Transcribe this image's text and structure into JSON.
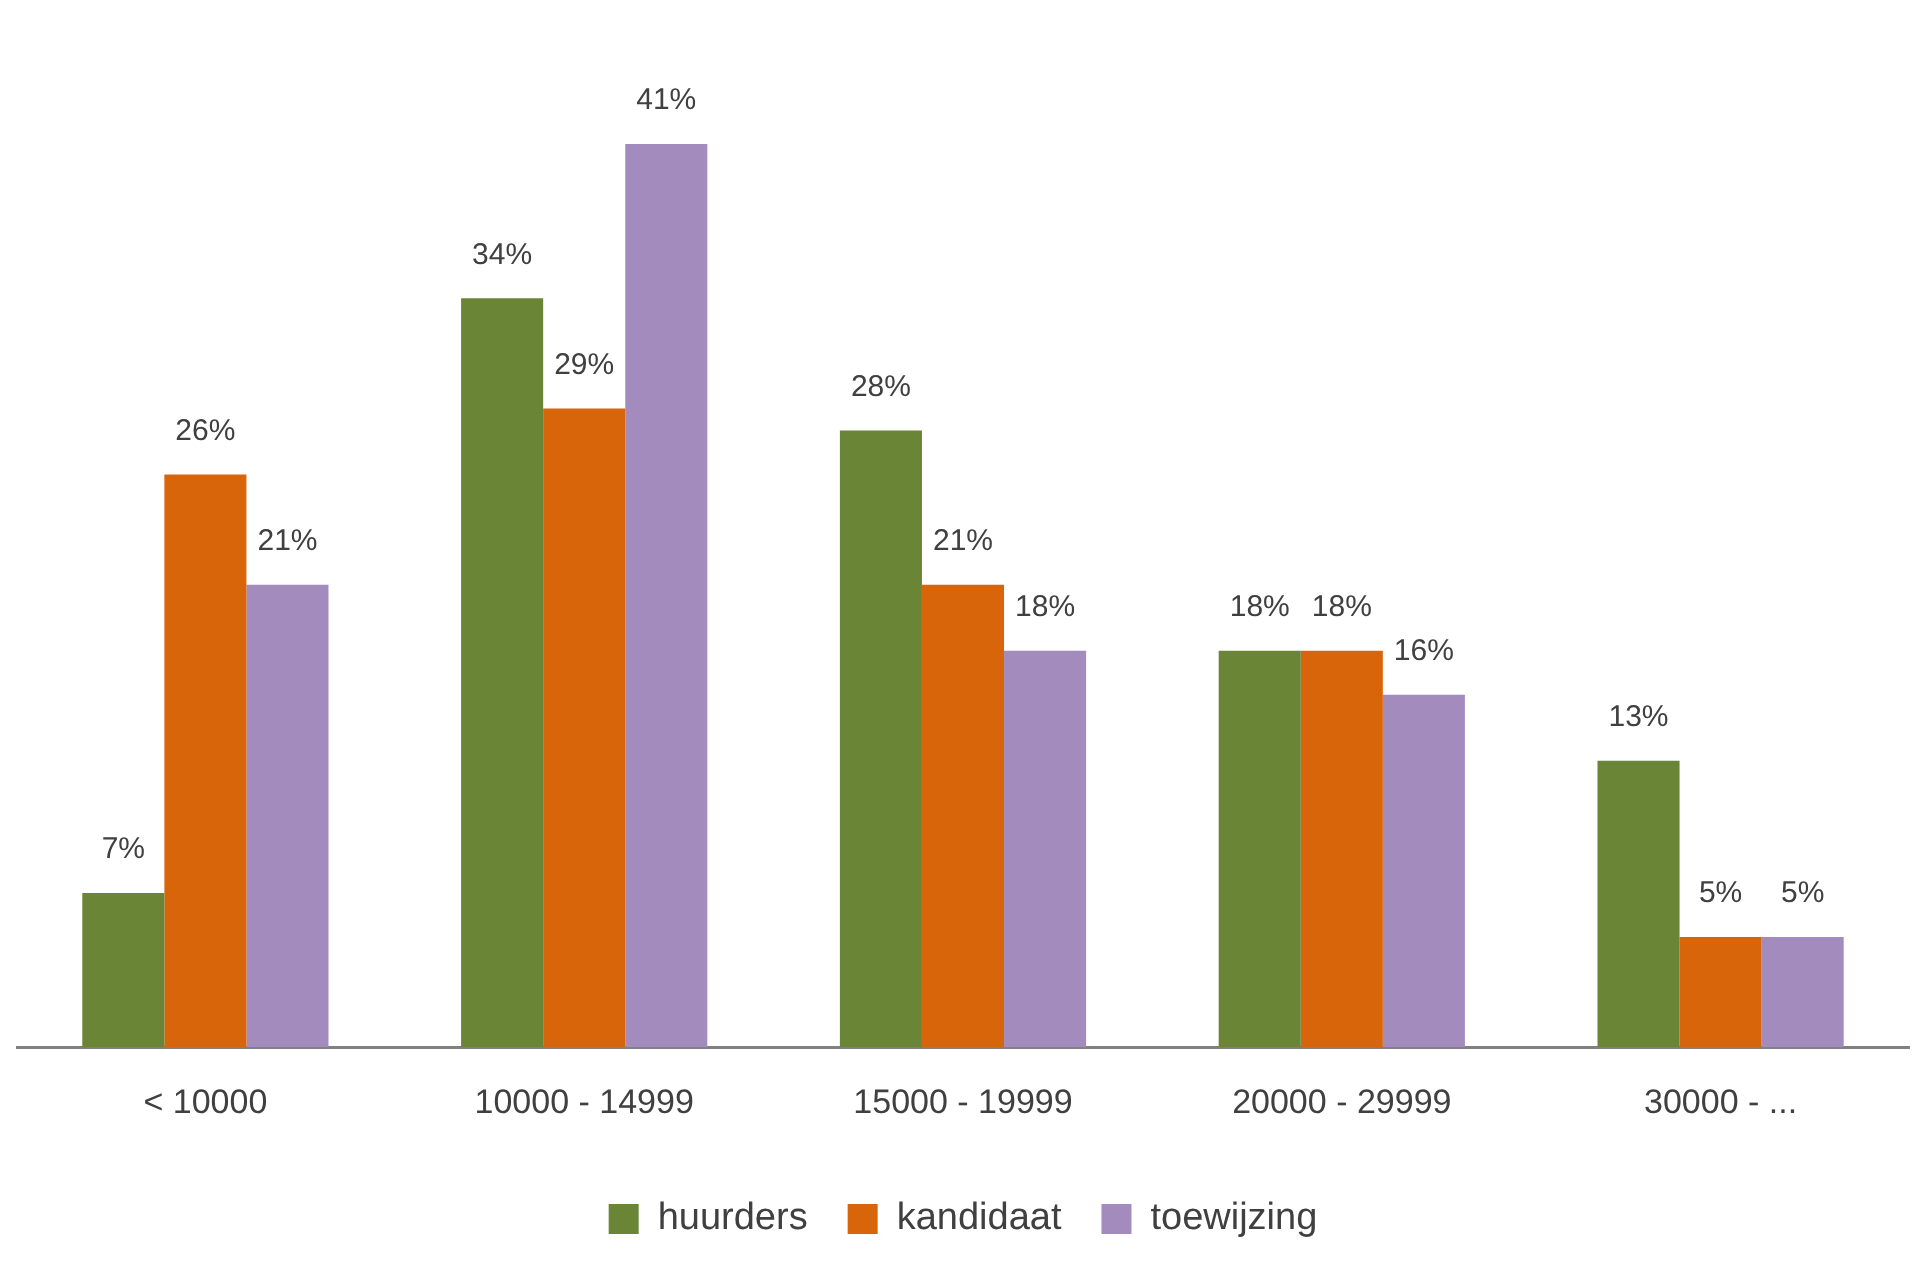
{
  "chart_data": {
    "type": "bar",
    "categories": [
      "< 10000",
      "10000 - 14999",
      "15000 - 19999",
      "20000 - 29999",
      "30000 - ..."
    ],
    "series": [
      {
        "name": "huurders",
        "color": "#6a8536",
        "values": [
          7,
          34,
          28,
          18,
          13
        ],
        "value_labels": [
          "7%",
          "34%",
          "28%",
          "18%",
          "13%"
        ]
      },
      {
        "name": "kandidaat",
        "color": "#d9650b",
        "values": [
          26,
          29,
          21,
          18,
          5
        ],
        "value_labels": [
          "26%",
          "29%",
          "21%",
          "18%",
          "5%"
        ]
      },
      {
        "name": "toewijzing",
        "color": "#a38cbd",
        "values": [
          21,
          41,
          18,
          16,
          5
        ],
        "value_labels": [
          "21%",
          "41%",
          "18%",
          "16%",
          "5%"
        ]
      }
    ],
    "legend": "bottom",
    "grid": false
  }
}
